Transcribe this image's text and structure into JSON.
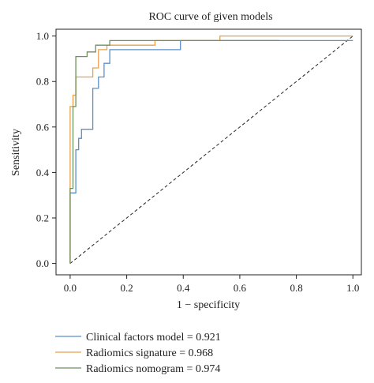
{
  "chart_data": {
    "type": "line",
    "title": "ROC curve of given models",
    "xlabel": "1 − specificity",
    "ylabel": "Sensitivity",
    "xlim": [
      -0.05,
      1.03
    ],
    "ylim": [
      -0.05,
      1.03
    ],
    "xticks": [
      {
        "value": 0.0,
        "label": "0.0"
      },
      {
        "value": 0.2,
        "label": "0.2"
      },
      {
        "value": 0.4,
        "label": "0.4"
      },
      {
        "value": 0.6,
        "label": "0.6"
      },
      {
        "value": 0.8,
        "label": "0.8"
      },
      {
        "value": 1.0,
        "label": "1.0"
      }
    ],
    "yticks": [
      {
        "value": 0.0,
        "label": "0.0"
      },
      {
        "value": 0.2,
        "label": "0.2"
      },
      {
        "value": 0.4,
        "label": "0.4"
      },
      {
        "value": 0.6,
        "label": "0.6"
      },
      {
        "value": 0.8,
        "label": "0.8"
      },
      {
        "value": 1.0,
        "label": "1.0"
      }
    ],
    "grid": false,
    "legend_position": "below",
    "reference_line": {
      "style": "dashed",
      "color": "#222222",
      "x": [
        0,
        1
      ],
      "y": [
        0,
        1
      ]
    },
    "series": [
      {
        "name": "Clinical factors model = 0.921",
        "color": "#5b8fc9",
        "x": [
          0,
          0,
          0.02,
          0.02,
          0.03,
          0.03,
          0.04,
          0.04,
          0.08,
          0.08,
          0.1,
          0.1,
          0.12,
          0.12,
          0.14,
          0.14,
          0.39,
          0.39,
          0.53,
          1.0
        ],
        "y": [
          0,
          0.31,
          0.31,
          0.5,
          0.5,
          0.55,
          0.55,
          0.59,
          0.59,
          0.77,
          0.77,
          0.82,
          0.82,
          0.88,
          0.88,
          0.94,
          0.94,
          0.98,
          0.98,
          0.98
        ]
      },
      {
        "name": "Radiomics signature = 0.968",
        "color": "#e8a04a",
        "x": [
          0,
          0,
          0.01,
          0.01,
          0.02,
          0.02,
          0.08,
          0.08,
          0.1,
          0.1,
          0.13,
          0.13,
          0.3,
          0.3,
          0.53,
          0.53,
          1.0
        ],
        "y": [
          0,
          0.69,
          0.69,
          0.74,
          0.74,
          0.82,
          0.82,
          0.86,
          0.86,
          0.94,
          0.94,
          0.96,
          0.96,
          0.98,
          0.98,
          1.0,
          1.0
        ]
      },
      {
        "name": "Radiomics nomogram = 0.974",
        "color": "#6e8f5e",
        "x": [
          0,
          0,
          0.01,
          0.01,
          0.02,
          0.02,
          0.06,
          0.06,
          0.09,
          0.09,
          0.14,
          0.14,
          0.74
        ],
        "y": [
          0,
          0.33,
          0.33,
          0.69,
          0.69,
          0.91,
          0.91,
          0.93,
          0.93,
          0.96,
          0.96,
          0.98,
          0.98
        ]
      }
    ]
  }
}
